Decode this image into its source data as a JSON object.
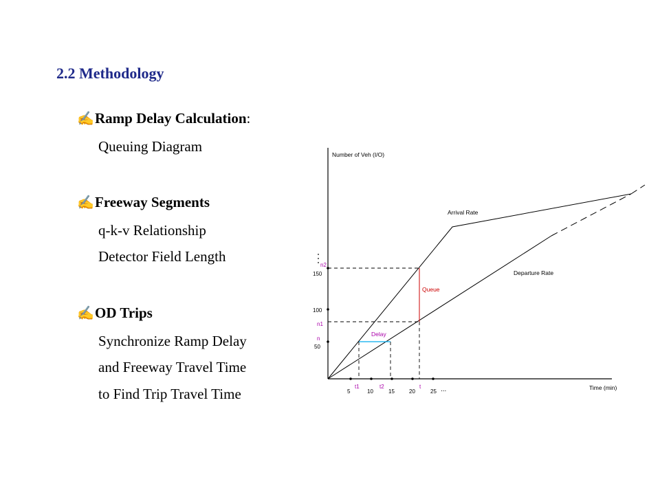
{
  "heading": "2.2 Methodology",
  "bullets": [
    {
      "icon": "pen-icon",
      "glyph": "✍",
      "title": "Ramp Delay Calculation",
      "suffix": ":",
      "lines": [
        "Queuing Diagram"
      ]
    },
    {
      "icon": "pen-icon",
      "glyph": "✍",
      "title": "Freeway Segments",
      "suffix": "",
      "lines": [
        "q-k-v Relationship",
        "Detector Field Length"
      ]
    },
    {
      "icon": "pen-icon",
      "glyph": "✍",
      "title": "OD Trips",
      "suffix": "",
      "lines": [
        "Synchronize Ramp Delay",
        "and Freeway Travel Time",
        "to Find Trip Travel Time"
      ]
    }
  ],
  "diagram": {
    "y_axis_label": "Number of Veh (I/O)",
    "x_axis_label": "Time (min)",
    "arrival_label": "Arrival Rate",
    "departure_label": "Departure Rate",
    "queue_label": "Queue",
    "delay_label": "Delay",
    "y_ticks": [
      "150",
      "100",
      "50"
    ],
    "y_markers": [
      "n2",
      "n1",
      "n"
    ],
    "x_ticks": [
      "5",
      "10",
      "15",
      "20",
      "25"
    ],
    "x_markers": [
      "t1",
      "t2",
      "t"
    ],
    "ellipsis": "...",
    "colors": {
      "axis": "#000000",
      "queue": "#cc0000",
      "delay": "#00aaee",
      "marker": "#aa00aa"
    }
  }
}
